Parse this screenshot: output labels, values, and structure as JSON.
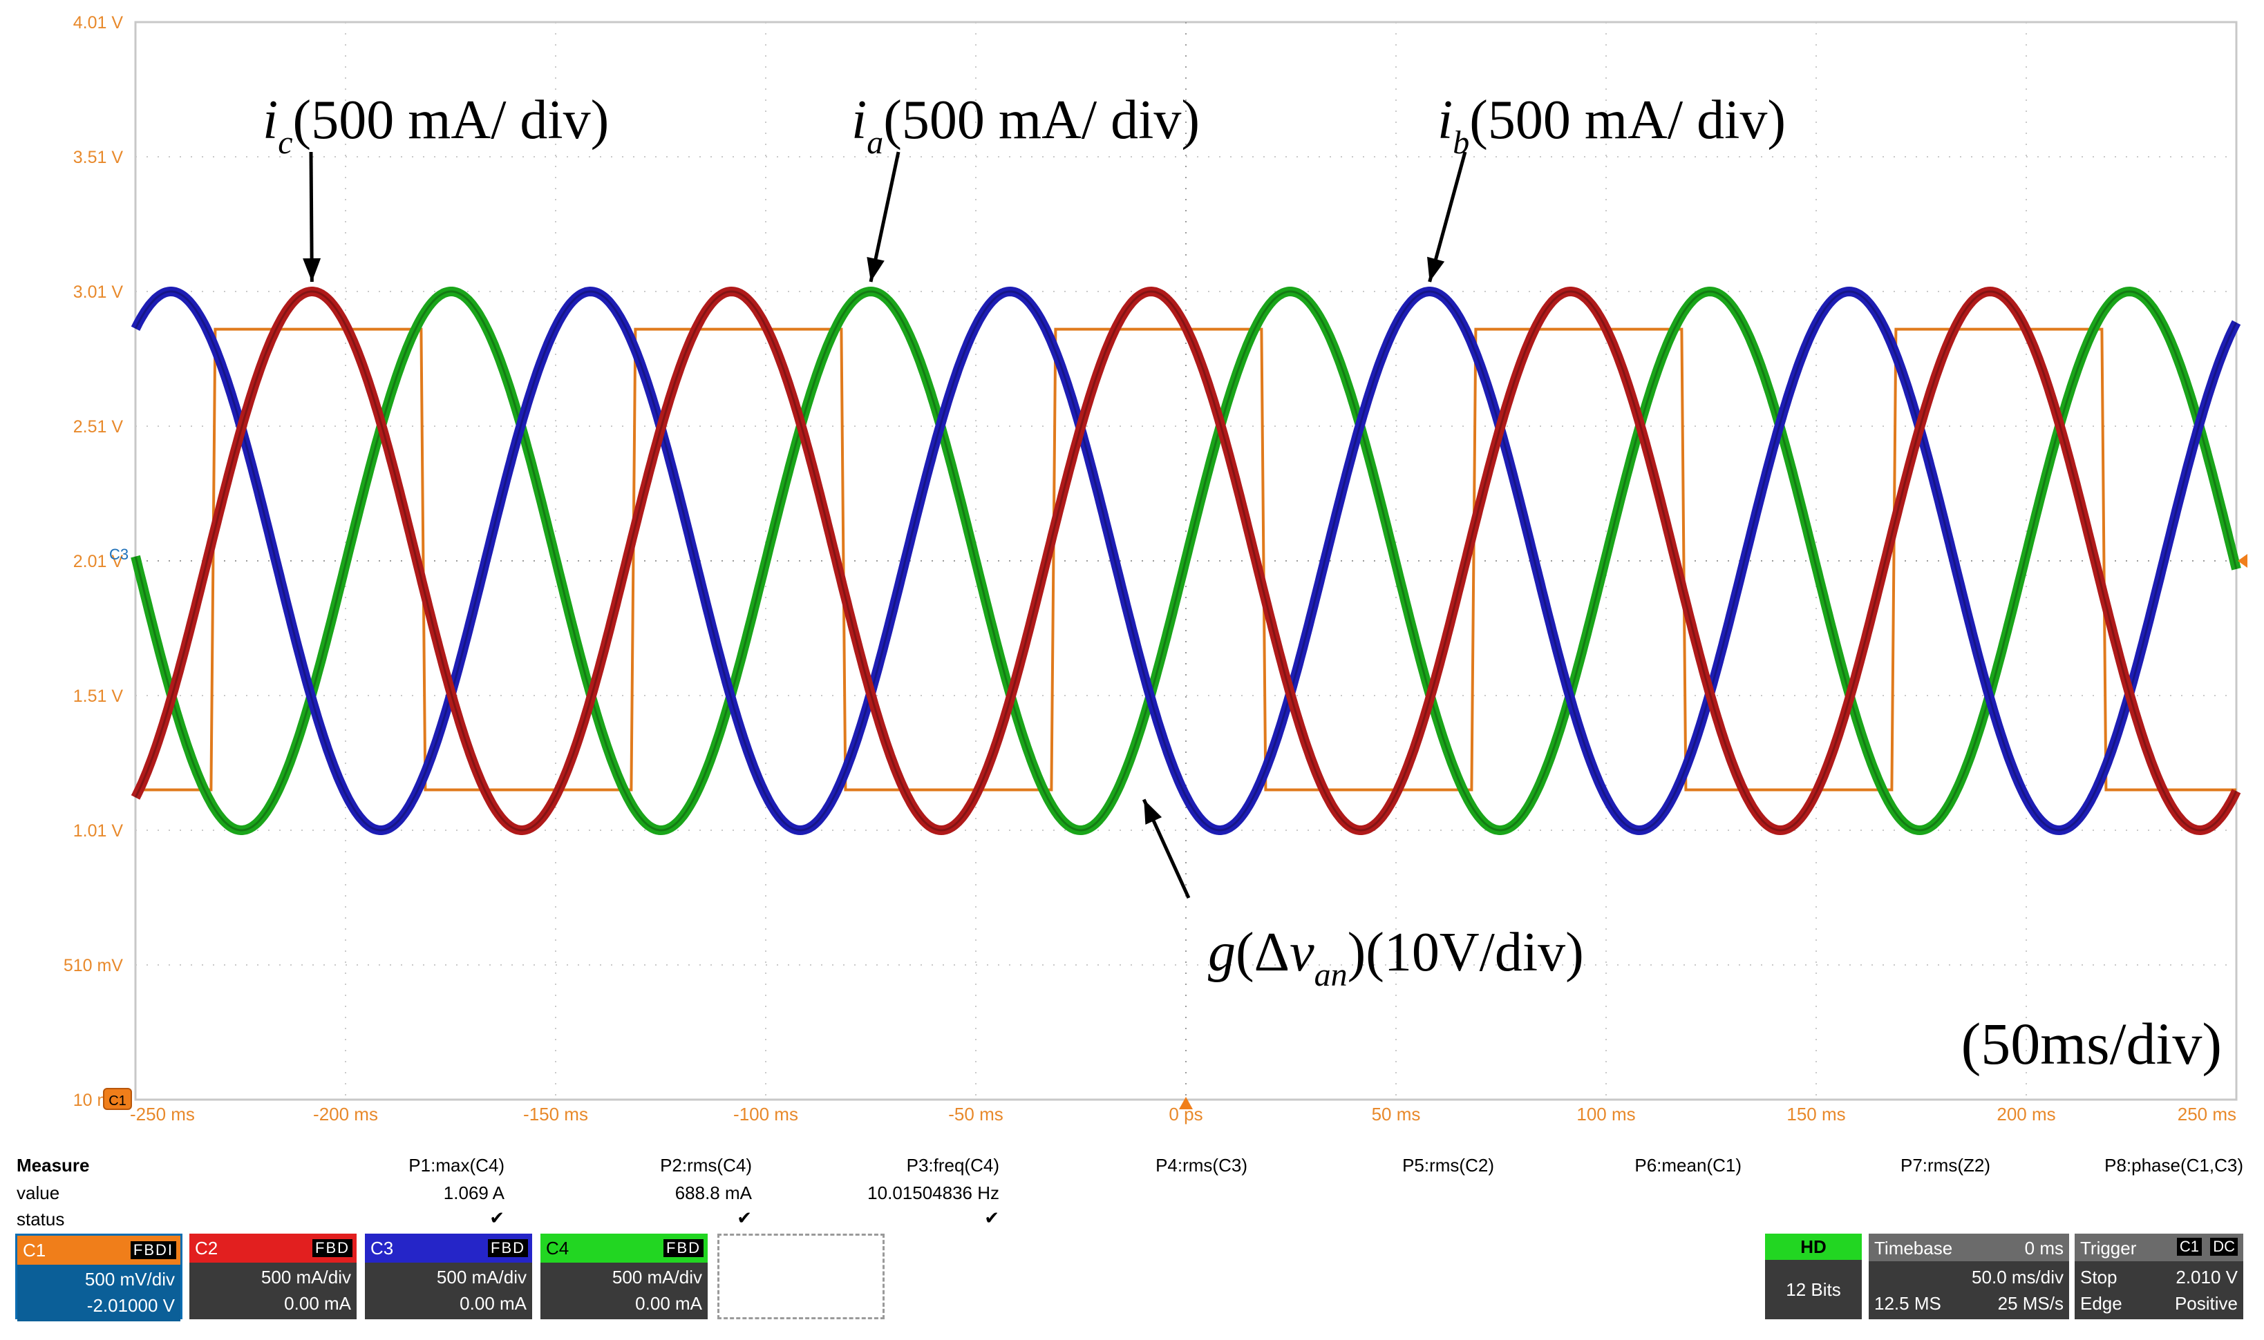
{
  "chart_data": {
    "type": "line",
    "title": "",
    "xlabel": "",
    "ylabel": "",
    "xlim": [
      -250,
      250
    ],
    "ylim": [
      0.01,
      4.01
    ],
    "x_tick_values": [
      -250,
      -200,
      -150,
      -100,
      -50,
      0,
      50,
      100,
      150,
      200,
      250
    ],
    "x_ticks": [
      "-250 ms",
      "-200 ms",
      "-150 ms",
      "-100 ms",
      "-50 ms",
      "0 ps",
      "50 ms",
      "100 ms",
      "150 ms",
      "200 ms",
      "250 ms"
    ],
    "y_tick_values": [
      4.01,
      3.51,
      3.01,
      2.51,
      2.01,
      1.51,
      1.01,
      0.51,
      0.01
    ],
    "y_ticks": [
      "4.01 V",
      "3.51 V",
      "3.01 V",
      "2.51 V",
      "2.01 V",
      "1.51 V",
      "1.01 V",
      "510 mV",
      "10 mV"
    ],
    "grid": true,
    "series": [
      {
        "name": "i_a",
        "color": "#1aa51a",
        "kind": "sine",
        "offset": 2.01,
        "amplitude": 1.0,
        "frequency_hz": 10.015,
        "peak_time_ms": -75
      },
      {
        "name": "i_b",
        "color": "#1d1db4",
        "kind": "sine",
        "offset": 2.01,
        "amplitude": 1.0,
        "frequency_hz": 10.015,
        "peak_time_ms": 58
      },
      {
        "name": "i_c",
        "color": "#b01a1a",
        "kind": "sine",
        "offset": 2.01,
        "amplitude": 1.0,
        "frequency_hz": 10.015,
        "peak_time_ms": -208
      },
      {
        "name": "g(Δv_an)",
        "color": "#e07a1c",
        "kind": "square",
        "high": 2.87,
        "low": 1.16,
        "rise_times_ms": [
          -232,
          -132,
          -32,
          68,
          168
        ],
        "fall_times_ms": [
          -182,
          -82,
          18,
          118,
          218
        ]
      }
    ],
    "annotations": [
      {
        "label": "i",
        "sub": "c",
        "text": "(500 mA/ div)",
        "target_x": -208,
        "target_y": 3.01
      },
      {
        "label": "i",
        "sub": "a",
        "text": "(500 mA/ div)",
        "target_x": -75,
        "target_y": 3.01
      },
      {
        "label": "i",
        "sub": "b",
        "text": "(500 mA/ div)",
        "target_x": 58,
        "target_y": 3.01
      },
      {
        "label": "g",
        "text": "(Δv",
        "sub": "an",
        "tail": ")(10V/div)",
        "target_x": -10,
        "target_y": 1.16
      }
    ],
    "timescale_label": "(50ms/div)",
    "channel_marker": "C3",
    "ground_marker": "C1"
  },
  "measure": {
    "title": "Measure",
    "row_labels": [
      "value",
      "status"
    ],
    "params": [
      {
        "name": "P1:max(C4)",
        "value": "1.069 A",
        "status": "✔"
      },
      {
        "name": "P2:rms(C4)",
        "value": "688.8 mA",
        "status": "✔"
      },
      {
        "name": "P3:freq(C4)",
        "value": "10.01504836 Hz",
        "status": "✔"
      },
      {
        "name": "P4:rms(C3)",
        "value": "",
        "status": ""
      },
      {
        "name": "P5:rms(C2)",
        "value": "",
        "status": ""
      },
      {
        "name": "P6:mean(C1)",
        "value": "",
        "status": ""
      },
      {
        "name": "P7:rms(Z2)",
        "value": "",
        "status": ""
      },
      {
        "name": "P8:phase(C1,C3)",
        "value": "",
        "status": ""
      }
    ]
  },
  "channels": [
    {
      "name": "C1",
      "flags": "FBDI",
      "scale": "500 mV/div",
      "offset": "-2.01000 V",
      "color": "#f07e1a",
      "body_color": "#0b5f98"
    },
    {
      "name": "C2",
      "flags": "FBD",
      "scale": "500 mA/div",
      "offset": "0.00 mA",
      "color": "#e21f1f",
      "body_color": "#3a3a3a"
    },
    {
      "name": "C3",
      "flags": "FBD",
      "scale": "500 mA/div",
      "offset": "0.00 mA",
      "color": "#2525c8",
      "body_color": "#3a3a3a"
    },
    {
      "name": "C4",
      "flags": "FBD",
      "scale": "500 mA/div",
      "offset": "0.00 mA",
      "color": "#22d622",
      "body_color": "#3a3a3a"
    }
  ],
  "status": {
    "hd": "HD",
    "bits": "12 Bits",
    "timebase_title": "Timebase",
    "timebase_delay": "0 ms",
    "timebase_scale": "50.0 ms/div",
    "samples": "12.5 MS",
    "rate": "25 MS/s",
    "trigger_title": "Trigger",
    "trigger_ch": "C1",
    "trigger_coupling": "DC",
    "trigger_mode": "Stop",
    "trigger_level": "2.010 V",
    "trigger_type": "Edge",
    "trigger_slope": "Positive"
  }
}
